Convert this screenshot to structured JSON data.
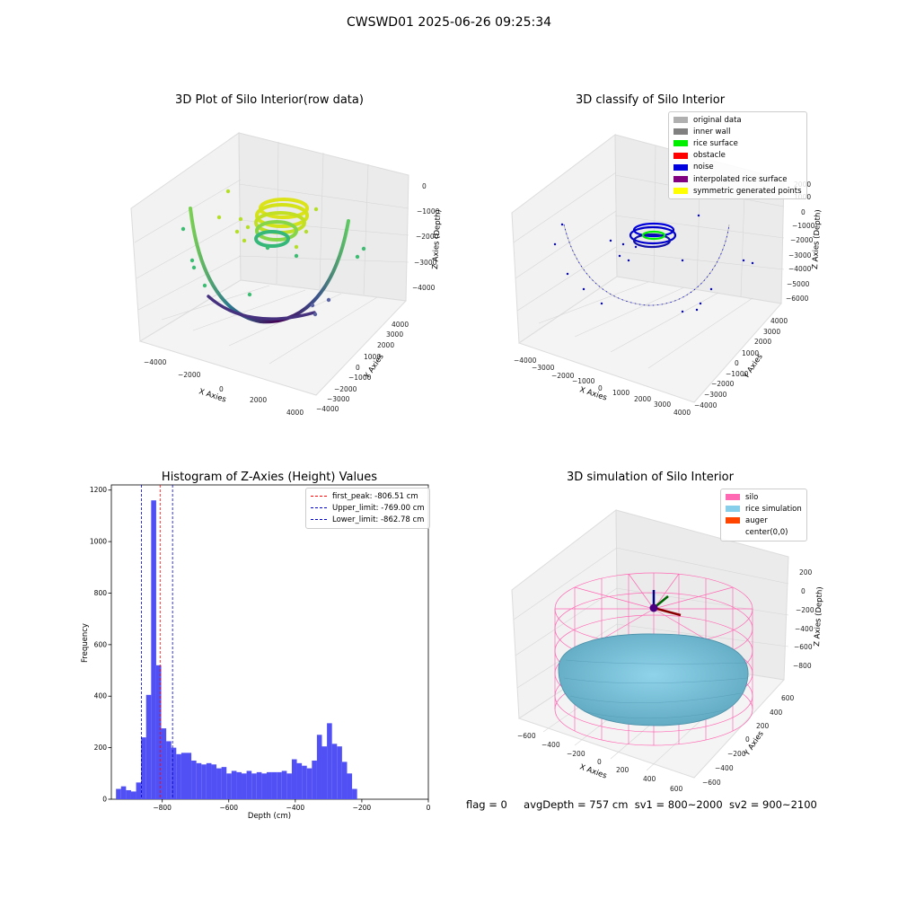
{
  "figure": {
    "suptitle": "CWSWD01 2025-06-26 09:25:34",
    "status_line": {
      "flag": "flag = 0",
      "avg_depth": "avgDepth = 757 cm",
      "sv1": "sv1 = 800~2000",
      "sv2": "sv2 = 900~2100"
    }
  },
  "panels": {
    "raw": {
      "title": "3D Plot of Silo Interior(row data)",
      "xlabel": "X Axies",
      "ylabel": "Y Axies",
      "zlabel": "Z Axies (Depth)",
      "xticks": [
        "−4000",
        "−2000",
        "0",
        "2000",
        "4000"
      ],
      "yticks": [
        "4000",
        "3000",
        "2000",
        "1000",
        "0",
        "−1000",
        "−2000",
        "−3000",
        "−4000"
      ],
      "zticks": [
        "0",
        "−1000",
        "−2000",
        "−3000",
        "−4000"
      ]
    },
    "classify": {
      "title": "3D classify of Silo Interior",
      "xlabel": "X Axies",
      "ylabel": "Y Axies",
      "zlabel": "Z Axies (Depth)",
      "xticks": [
        "−4000",
        "−3000",
        "−2000",
        "−1000",
        "0",
        "1000",
        "2000",
        "3000",
        "4000"
      ],
      "yticks": [
        "4000",
        "3000",
        "2000",
        "1000",
        "0",
        "−1000",
        "−2000",
        "−3000",
        "−4000"
      ],
      "zticks": [
        "2000",
        "1000",
        "0",
        "−1000",
        "−2000",
        "−3000",
        "−4000",
        "−5000",
        "−6000"
      ],
      "legend": [
        {
          "label": "original data",
          "color": "#b0b0b0"
        },
        {
          "label": "inner wall",
          "color": "#808080"
        },
        {
          "label": "rice surface",
          "color": "#00ee00"
        },
        {
          "label": "obstacle",
          "color": "#ff0000"
        },
        {
          "label": "noise",
          "color": "#0000dd"
        },
        {
          "label": "interpolated rice surface",
          "color": "#800080"
        },
        {
          "label": "symmetric generated points",
          "color": "#ffff00"
        }
      ]
    },
    "simulation": {
      "title": "3D simulation of Silo Interior",
      "xlabel": "X Axies",
      "ylabel": "Y Axies",
      "zlabel": "Z Axies (Depth)",
      "xticks": [
        "−600",
        "−400",
        "−200",
        "0",
        "200",
        "400",
        "600"
      ],
      "yticks": [
        "600",
        "400",
        "200",
        "0",
        "−200",
        "−400",
        "−600"
      ],
      "zticks": [
        "200",
        "0",
        "−200",
        "−400",
        "−600",
        "−800"
      ],
      "legend": [
        {
          "label": "silo",
          "color": "#ff69b4"
        },
        {
          "label": "rice simulation",
          "color": "#87ceeb"
        },
        {
          "label": "auger",
          "color": "#ff4500"
        },
        {
          "label": "center(0,0)",
          "color": "#ffffff"
        }
      ]
    }
  },
  "chart_data": [
    {
      "type": "bar",
      "title": "Histogram of Z-Axies (Height) Values",
      "xlabel": "Depth (cm)",
      "ylabel": "Frequency",
      "xlim": [
        -953,
        0
      ],
      "ylim": [
        0,
        1220
      ],
      "xticks": [
        -800,
        -600,
        -400,
        -200,
        0
      ],
      "xtick_labels": [
        "−800",
        "−600",
        "−400",
        "−200",
        "0"
      ],
      "yticks": [
        0,
        200,
        400,
        600,
        800,
        1000,
        1200
      ],
      "bin_width": 15.1,
      "bins_start": -939,
      "values": [
        40,
        50,
        35,
        30,
        65,
        240,
        405,
        1160,
        520,
        275,
        225,
        200,
        175,
        180,
        180,
        150,
        140,
        135,
        140,
        135,
        120,
        125,
        100,
        110,
        105,
        100,
        110,
        100,
        105,
        100,
        105,
        105,
        105,
        110,
        100,
        155,
        140,
        130,
        120,
        150,
        250,
        205,
        295,
        215,
        205,
        145,
        100,
        40
      ],
      "bar_color": "#5050f5",
      "vlines": [
        {
          "x": -806.51,
          "color": "#ff0000",
          "label": "first_peak: -806.51 cm"
        },
        {
          "x": -769.0,
          "color": "#0000cc",
          "label": "Upper_limit: -769.00 cm"
        },
        {
          "x": -862.78,
          "color": "#0000cc",
          "label": "Lower_limit: -862.78 cm"
        }
      ],
      "legend_position": "top-right"
    }
  ]
}
